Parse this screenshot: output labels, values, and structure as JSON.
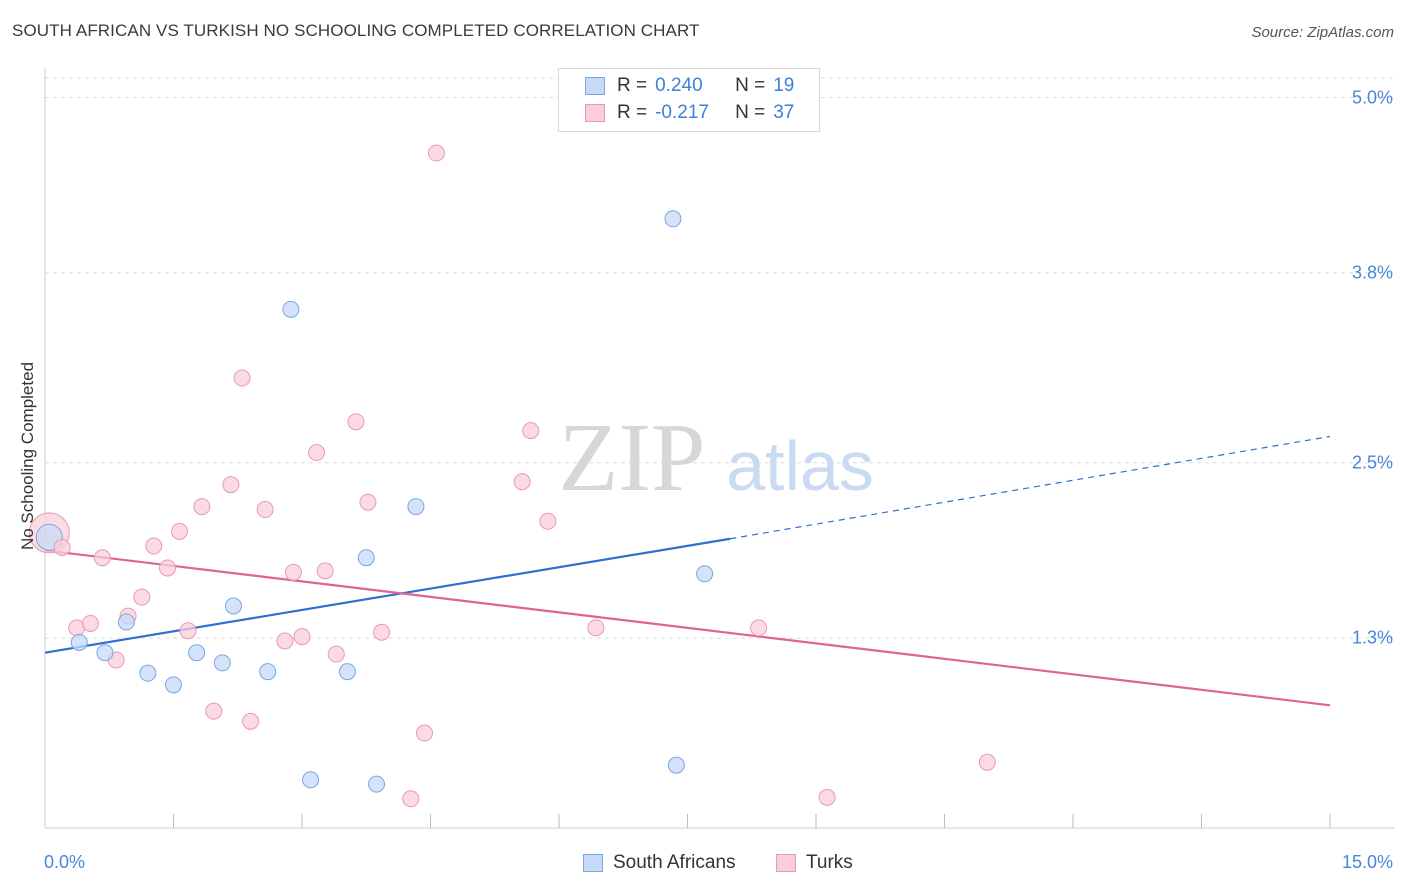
{
  "title": "SOUTH AFRICAN VS TURKISH NO SCHOOLING COMPLETED CORRELATION CHART",
  "source": "Source: ZipAtlas.com",
  "watermark": {
    "zip": "ZIP",
    "atlas": "atlas"
  },
  "colors": {
    "blue_fill": "#c6daf7",
    "blue_stroke": "#7aa7e0",
    "blue_line": "#2f6fd1",
    "pink_fill": "#f9cdd9",
    "pink_stroke": "#e89ab1",
    "pink_line": "#e0648e",
    "axis_text": "#4a86d8"
  },
  "legend": {
    "rows": [
      {
        "r_label": "R =",
        "r_value": "0.240",
        "n_label": "N =",
        "n_value": "19"
      },
      {
        "r_label": "R =",
        "r_value": "-0.217",
        "n_label": "N =",
        "n_value": "37"
      }
    ]
  },
  "bottom_legend": [
    "South Africans",
    "Turks"
  ],
  "chart_data": {
    "type": "scatter",
    "title": "SOUTH AFRICAN VS TURKISH NO SCHOOLING COMPLETED CORRELATION CHART",
    "xlabel": "",
    "ylabel": "No Schooling Completed",
    "xlim": [
      0,
      15
    ],
    "ylim": [
      0,
      5.12
    ],
    "x_tick_labels": [
      "0.0%",
      "15.0%"
    ],
    "y_ticks": [
      1.3,
      2.5,
      3.8,
      5.0
    ],
    "y_tick_labels": [
      "1.3%",
      "2.5%",
      "3.8%",
      "5.0%"
    ],
    "grid": true,
    "series": [
      {
        "name": "South Africans",
        "r": 0.24,
        "n": 19,
        "trend": {
          "x": [
            0,
            8.0
          ],
          "y": [
            1.2,
            1.98
          ],
          "dashed_to": [
            15.0,
            2.68
          ]
        },
        "points": [
          {
            "x": 0.05,
            "y": 1.99
          },
          {
            "x": 0.4,
            "y": 1.27
          },
          {
            "x": 0.7,
            "y": 1.2
          },
          {
            "x": 0.95,
            "y": 1.41
          },
          {
            "x": 1.2,
            "y": 1.06
          },
          {
            "x": 1.5,
            "y": 0.98
          },
          {
            "x": 1.77,
            "y": 1.2
          },
          {
            "x": 2.07,
            "y": 1.13
          },
          {
            "x": 2.2,
            "y": 1.52
          },
          {
            "x": 2.6,
            "y": 1.07
          },
          {
            "x": 2.87,
            "y": 3.55
          },
          {
            "x": 3.1,
            "y": 0.33
          },
          {
            "x": 3.53,
            "y": 1.07
          },
          {
            "x": 3.75,
            "y": 1.85
          },
          {
            "x": 3.87,
            "y": 0.3
          },
          {
            "x": 4.33,
            "y": 2.2
          },
          {
            "x": 7.33,
            "y": 4.17
          },
          {
            "x": 7.37,
            "y": 0.43
          },
          {
            "x": 7.7,
            "y": 1.74
          }
        ]
      },
      {
        "name": "Turks",
        "r": -0.217,
        "n": 37,
        "trend": {
          "x": [
            0,
            15.0
          ],
          "y": [
            1.9,
            0.84
          ]
        },
        "points": [
          {
            "x": 0.03,
            "y": 2.02
          },
          {
            "x": 0.2,
            "y": 1.92
          },
          {
            "x": 0.37,
            "y": 1.37
          },
          {
            "x": 0.53,
            "y": 1.4
          },
          {
            "x": 0.67,
            "y": 1.85
          },
          {
            "x": 0.83,
            "y": 1.15
          },
          {
            "x": 0.97,
            "y": 1.45
          },
          {
            "x": 1.13,
            "y": 1.58
          },
          {
            "x": 1.27,
            "y": 1.93
          },
          {
            "x": 1.43,
            "y": 1.78
          },
          {
            "x": 1.57,
            "y": 2.03
          },
          {
            "x": 1.67,
            "y": 1.35
          },
          {
            "x": 1.83,
            "y": 2.2
          },
          {
            "x": 1.97,
            "y": 0.8
          },
          {
            "x": 2.17,
            "y": 2.35
          },
          {
            "x": 2.3,
            "y": 3.08
          },
          {
            "x": 2.4,
            "y": 0.73
          },
          {
            "x": 2.57,
            "y": 2.18
          },
          {
            "x": 2.8,
            "y": 1.28
          },
          {
            "x": 2.9,
            "y": 1.75
          },
          {
            "x": 3.0,
            "y": 1.31
          },
          {
            "x": 3.17,
            "y": 2.57
          },
          {
            "x": 3.27,
            "y": 1.76
          },
          {
            "x": 3.4,
            "y": 1.19
          },
          {
            "x": 3.63,
            "y": 2.78
          },
          {
            "x": 3.77,
            "y": 2.23
          },
          {
            "x": 3.93,
            "y": 1.34
          },
          {
            "x": 4.27,
            "y": 0.2
          },
          {
            "x": 4.43,
            "y": 0.65
          },
          {
            "x": 4.57,
            "y": 4.62
          },
          {
            "x": 5.57,
            "y": 2.37
          },
          {
            "x": 5.67,
            "y": 2.72
          },
          {
            "x": 5.87,
            "y": 2.1
          },
          {
            "x": 6.43,
            "y": 1.37
          },
          {
            "x": 8.33,
            "y": 1.37
          },
          {
            "x": 9.13,
            "y": 0.21
          },
          {
            "x": 11.0,
            "y": 0.45
          }
        ]
      }
    ]
  }
}
